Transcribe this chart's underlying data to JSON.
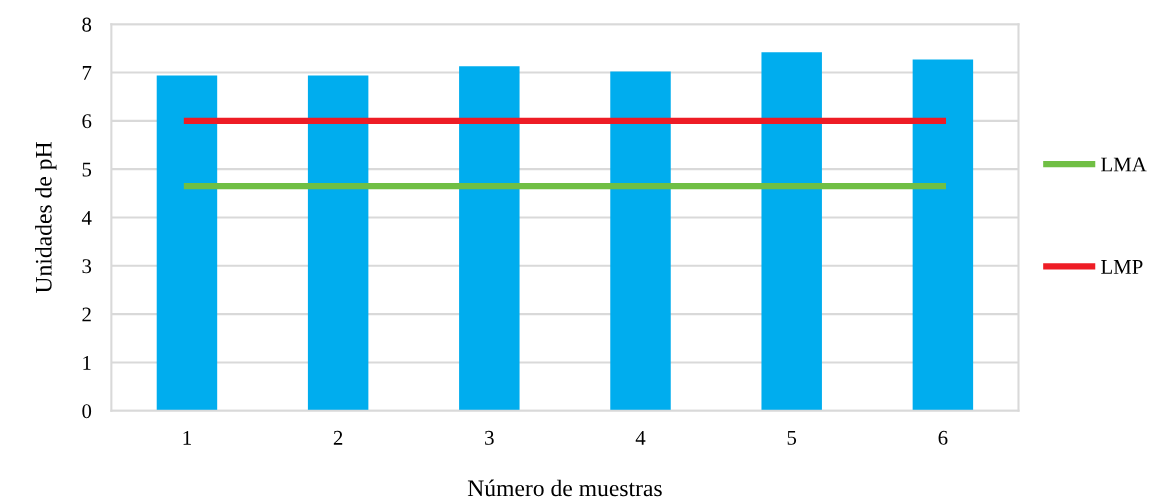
{
  "chart_data": {
    "type": "bar",
    "xlabel": "Número de muestras",
    "ylabel": "Unidades de pH",
    "categories": [
      "1",
      "2",
      "3",
      "4",
      "5",
      "6"
    ],
    "series": [
      {
        "color": "#00adee",
        "values": [
          6.94,
          6.94,
          7.13,
          7.02,
          7.42,
          7.27
        ]
      },
      {
        "type": "line",
        "name": "LMA",
        "color": "#70bf44",
        "values": [
          4.65,
          4.65,
          4.65,
          4.65,
          4.65,
          4.65
        ]
      },
      {
        "type": "line",
        "name": "LMP",
        "color": "#ee1c25",
        "values": [
          6.0,
          6.0,
          6.0,
          6.0,
          6.0,
          6.0
        ]
      }
    ],
    "ylim": [
      0,
      8
    ],
    "yticks": [
      0,
      1,
      2,
      3,
      4,
      5,
      6,
      7,
      8
    ],
    "grid": "y",
    "legend": "right"
  }
}
